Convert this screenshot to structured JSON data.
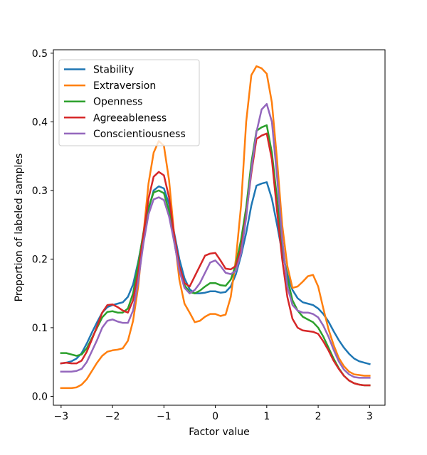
{
  "chart_data": {
    "type": "line",
    "title": "",
    "xlabel": "Factor value",
    "ylabel": "Proportion of labeled samples",
    "xlim": [
      -3.15,
      3.3
    ],
    "ylim": [
      -0.013,
      0.505
    ],
    "xticks": [
      -3,
      -2,
      -1,
      0,
      1,
      2,
      3
    ],
    "xtick_labels": [
      "−3",
      "−2",
      "−1",
      "0",
      "1",
      "2",
      "3"
    ],
    "yticks": [
      0.0,
      0.1,
      0.2,
      0.3,
      0.4,
      0.5
    ],
    "ytick_labels": [
      "0.0",
      "0.1",
      "0.2",
      "0.3",
      "0.4",
      "0.5"
    ],
    "grid": false,
    "legend_position": "top-left",
    "x": [
      -3.0,
      -2.9,
      -2.8,
      -2.7,
      -2.6,
      -2.5,
      -2.4,
      -2.3,
      -2.2,
      -2.1,
      -2.0,
      -1.9,
      -1.8,
      -1.7,
      -1.6,
      -1.5,
      -1.4,
      -1.3,
      -1.2,
      -1.1,
      -1.0,
      -0.9,
      -0.8,
      -0.7,
      -0.6,
      -0.5,
      -0.4,
      -0.3,
      -0.2,
      -0.1,
      0.0,
      0.1,
      0.2,
      0.3,
      0.4,
      0.5,
      0.6,
      0.7,
      0.8,
      0.9,
      1.0,
      1.1,
      1.2,
      1.3,
      1.4,
      1.5,
      1.6,
      1.7,
      1.8,
      1.9,
      2.0,
      2.1,
      2.2,
      2.3,
      2.4,
      2.5,
      2.6,
      2.7,
      2.8,
      2.9,
      3.0
    ],
    "series": [
      {
        "name": "Stability",
        "color": "#1f77b4",
        "values": [
          0.048,
          0.049,
          0.051,
          0.055,
          0.063,
          0.077,
          0.093,
          0.108,
          0.122,
          0.13,
          0.133,
          0.135,
          0.137,
          0.145,
          0.163,
          0.196,
          0.235,
          0.272,
          0.3,
          0.306,
          0.303,
          0.28,
          0.238,
          0.2,
          0.172,
          0.156,
          0.15,
          0.15,
          0.151,
          0.153,
          0.153,
          0.151,
          0.152,
          0.16,
          0.178,
          0.205,
          0.238,
          0.278,
          0.307,
          0.31,
          0.312,
          0.288,
          0.25,
          0.21,
          0.178,
          0.155,
          0.143,
          0.137,
          0.135,
          0.133,
          0.128,
          0.12,
          0.109,
          0.095,
          0.082,
          0.071,
          0.062,
          0.055,
          0.051,
          0.049,
          0.047
        ]
      },
      {
        "name": "Extraversion",
        "color": "#ff7f0e",
        "values": [
          0.012,
          0.012,
          0.012,
          0.013,
          0.017,
          0.025,
          0.037,
          0.049,
          0.059,
          0.065,
          0.067,
          0.068,
          0.07,
          0.081,
          0.11,
          0.16,
          0.235,
          0.31,
          0.355,
          0.372,
          0.365,
          0.315,
          0.235,
          0.17,
          0.135,
          0.122,
          0.108,
          0.11,
          0.116,
          0.12,
          0.12,
          0.117,
          0.119,
          0.145,
          0.2,
          0.278,
          0.4,
          0.468,
          0.481,
          0.478,
          0.47,
          0.428,
          0.345,
          0.25,
          0.19,
          0.158,
          0.16,
          0.167,
          0.175,
          0.177,
          0.16,
          0.128,
          0.098,
          0.075,
          0.056,
          0.044,
          0.036,
          0.032,
          0.031,
          0.03,
          0.03
        ]
      },
      {
        "name": "Openness",
        "color": "#2ca02c",
        "values": [
          0.063,
          0.063,
          0.061,
          0.059,
          0.061,
          0.07,
          0.085,
          0.1,
          0.115,
          0.123,
          0.124,
          0.122,
          0.122,
          0.128,
          0.15,
          0.193,
          0.238,
          0.275,
          0.297,
          0.3,
          0.296,
          0.27,
          0.225,
          0.186,
          0.162,
          0.152,
          0.15,
          0.154,
          0.16,
          0.165,
          0.165,
          0.162,
          0.161,
          0.17,
          0.192,
          0.228,
          0.275,
          0.34,
          0.387,
          0.392,
          0.395,
          0.355,
          0.288,
          0.22,
          0.172,
          0.14,
          0.125,
          0.116,
          0.112,
          0.108,
          0.1,
          0.087,
          0.071,
          0.055,
          0.041,
          0.03,
          0.023,
          0.019,
          0.017,
          0.016,
          0.016
        ]
      },
      {
        "name": "Agreeableness",
        "color": "#d62728",
        "values": [
          0.048,
          0.049,
          0.048,
          0.048,
          0.052,
          0.065,
          0.083,
          0.102,
          0.122,
          0.133,
          0.134,
          0.13,
          0.125,
          0.122,
          0.14,
          0.18,
          0.235,
          0.288,
          0.32,
          0.327,
          0.322,
          0.29,
          0.235,
          0.19,
          0.165,
          0.16,
          0.175,
          0.19,
          0.205,
          0.208,
          0.209,
          0.198,
          0.186,
          0.185,
          0.19,
          0.215,
          0.265,
          0.325,
          0.375,
          0.38,
          0.383,
          0.345,
          0.27,
          0.2,
          0.145,
          0.113,
          0.1,
          0.096,
          0.095,
          0.094,
          0.091,
          0.08,
          0.067,
          0.052,
          0.04,
          0.03,
          0.023,
          0.019,
          0.017,
          0.016,
          0.016
        ]
      },
      {
        "name": "Conscientiousness",
        "color": "#9467bd",
        "values": [
          0.036,
          0.036,
          0.036,
          0.037,
          0.04,
          0.05,
          0.066,
          0.082,
          0.1,
          0.11,
          0.112,
          0.109,
          0.107,
          0.107,
          0.125,
          0.168,
          0.222,
          0.265,
          0.287,
          0.29,
          0.286,
          0.262,
          0.225,
          0.183,
          0.158,
          0.15,
          0.155,
          0.165,
          0.18,
          0.195,
          0.198,
          0.19,
          0.18,
          0.178,
          0.183,
          0.208,
          0.26,
          0.33,
          0.385,
          0.418,
          0.426,
          0.4,
          0.32,
          0.23,
          0.16,
          0.133,
          0.125,
          0.122,
          0.122,
          0.12,
          0.115,
          0.103,
          0.087,
          0.068,
          0.051,
          0.039,
          0.032,
          0.028,
          0.027,
          0.027,
          0.027
        ]
      }
    ]
  }
}
